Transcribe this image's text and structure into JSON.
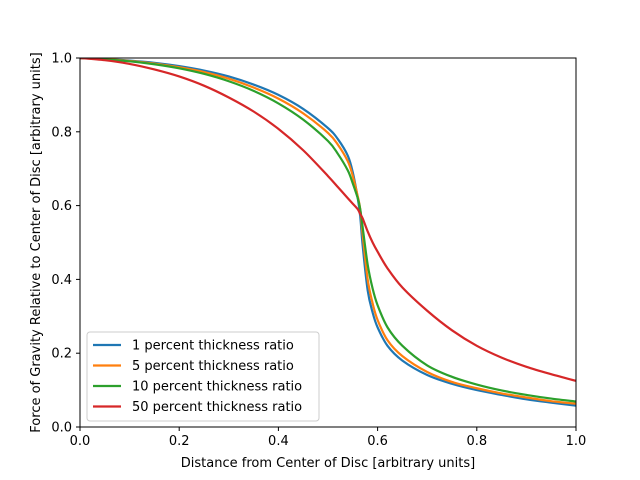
{
  "chart_data": {
    "type": "line",
    "title": "",
    "xlabel": "Distance from Center of Disc [arbitrary units]",
    "ylabel": "Force of Gravity Relative to Center of Disc [arbitrary units]",
    "xlim": [
      0.0,
      1.0
    ],
    "ylim": [
      0.0,
      1.0
    ],
    "xticks": [
      "0.0",
      "0.2",
      "0.4",
      "0.6",
      "0.8",
      "1.0"
    ],
    "yticks": [
      "0.0",
      "0.2",
      "0.4",
      "0.6",
      "0.8",
      "1.0"
    ],
    "grid": false,
    "legend_position": "lower-left",
    "series": [
      {
        "name": "1 percent thickness ratio",
        "color": "#1f77b4",
        "x": [
          0.0,
          0.05,
          0.1,
          0.15,
          0.2,
          0.25,
          0.3,
          0.35,
          0.4,
          0.45,
          0.5,
          0.52,
          0.54,
          0.55,
          0.56,
          0.565,
          0.57,
          0.58,
          0.59,
          0.6,
          0.62,
          0.65,
          0.7,
          0.75,
          0.8,
          0.85,
          0.9,
          0.95,
          1.0
        ],
        "y": [
          1.0,
          0.997,
          0.993,
          0.987,
          0.978,
          0.966,
          0.95,
          0.928,
          0.9,
          0.862,
          0.81,
          0.78,
          0.735,
          0.69,
          0.62,
          0.57,
          0.49,
          0.37,
          0.31,
          0.27,
          0.22,
          0.18,
          0.141,
          0.117,
          0.1,
          0.087,
          0.075,
          0.066,
          0.058
        ]
      },
      {
        "name": "5 percent thickness ratio",
        "color": "#ff7f0e",
        "x": [
          0.0,
          0.05,
          0.1,
          0.15,
          0.2,
          0.25,
          0.3,
          0.35,
          0.4,
          0.45,
          0.5,
          0.52,
          0.54,
          0.55,
          0.56,
          0.565,
          0.57,
          0.58,
          0.59,
          0.6,
          0.62,
          0.65,
          0.7,
          0.75,
          0.8,
          0.85,
          0.9,
          0.95,
          1.0
        ],
        "y": [
          1.0,
          0.997,
          0.992,
          0.985,
          0.975,
          0.962,
          0.944,
          0.92,
          0.89,
          0.85,
          0.797,
          0.765,
          0.72,
          0.68,
          0.625,
          0.59,
          0.52,
          0.4,
          0.335,
          0.29,
          0.235,
          0.192,
          0.149,
          0.122,
          0.105,
          0.091,
          0.08,
          0.07,
          0.063
        ]
      },
      {
        "name": "10 percent thickness ratio",
        "color": "#2ca02c",
        "x": [
          0.0,
          0.05,
          0.1,
          0.15,
          0.2,
          0.25,
          0.3,
          0.35,
          0.4,
          0.45,
          0.5,
          0.52,
          0.54,
          0.55,
          0.56,
          0.565,
          0.57,
          0.58,
          0.59,
          0.6,
          0.62,
          0.65,
          0.7,
          0.75,
          0.8,
          0.85,
          0.9,
          0.95,
          1.0
        ],
        "y": [
          1.0,
          0.996,
          0.991,
          0.983,
          0.972,
          0.957,
          0.937,
          0.911,
          0.877,
          0.833,
          0.775,
          0.74,
          0.695,
          0.66,
          0.62,
          0.59,
          0.54,
          0.44,
          0.375,
          0.33,
          0.27,
          0.22,
          0.167,
          0.136,
          0.115,
          0.099,
          0.087,
          0.077,
          0.069
        ]
      },
      {
        "name": "50 percent thickness ratio",
        "color": "#d62728",
        "x": [
          0.0,
          0.05,
          0.1,
          0.15,
          0.2,
          0.25,
          0.3,
          0.35,
          0.4,
          0.45,
          0.5,
          0.52,
          0.54,
          0.55,
          0.56,
          0.565,
          0.57,
          0.58,
          0.59,
          0.6,
          0.62,
          0.65,
          0.7,
          0.75,
          0.8,
          0.85,
          0.9,
          0.95,
          1.0
        ],
        "y": [
          1.0,
          0.994,
          0.984,
          0.969,
          0.95,
          0.925,
          0.893,
          0.855,
          0.808,
          0.75,
          0.68,
          0.65,
          0.62,
          0.605,
          0.59,
          0.577,
          0.565,
          0.53,
          0.5,
          0.475,
          0.43,
          0.378,
          0.315,
          0.262,
          0.22,
          0.188,
          0.163,
          0.143,
          0.125
        ]
      }
    ]
  }
}
